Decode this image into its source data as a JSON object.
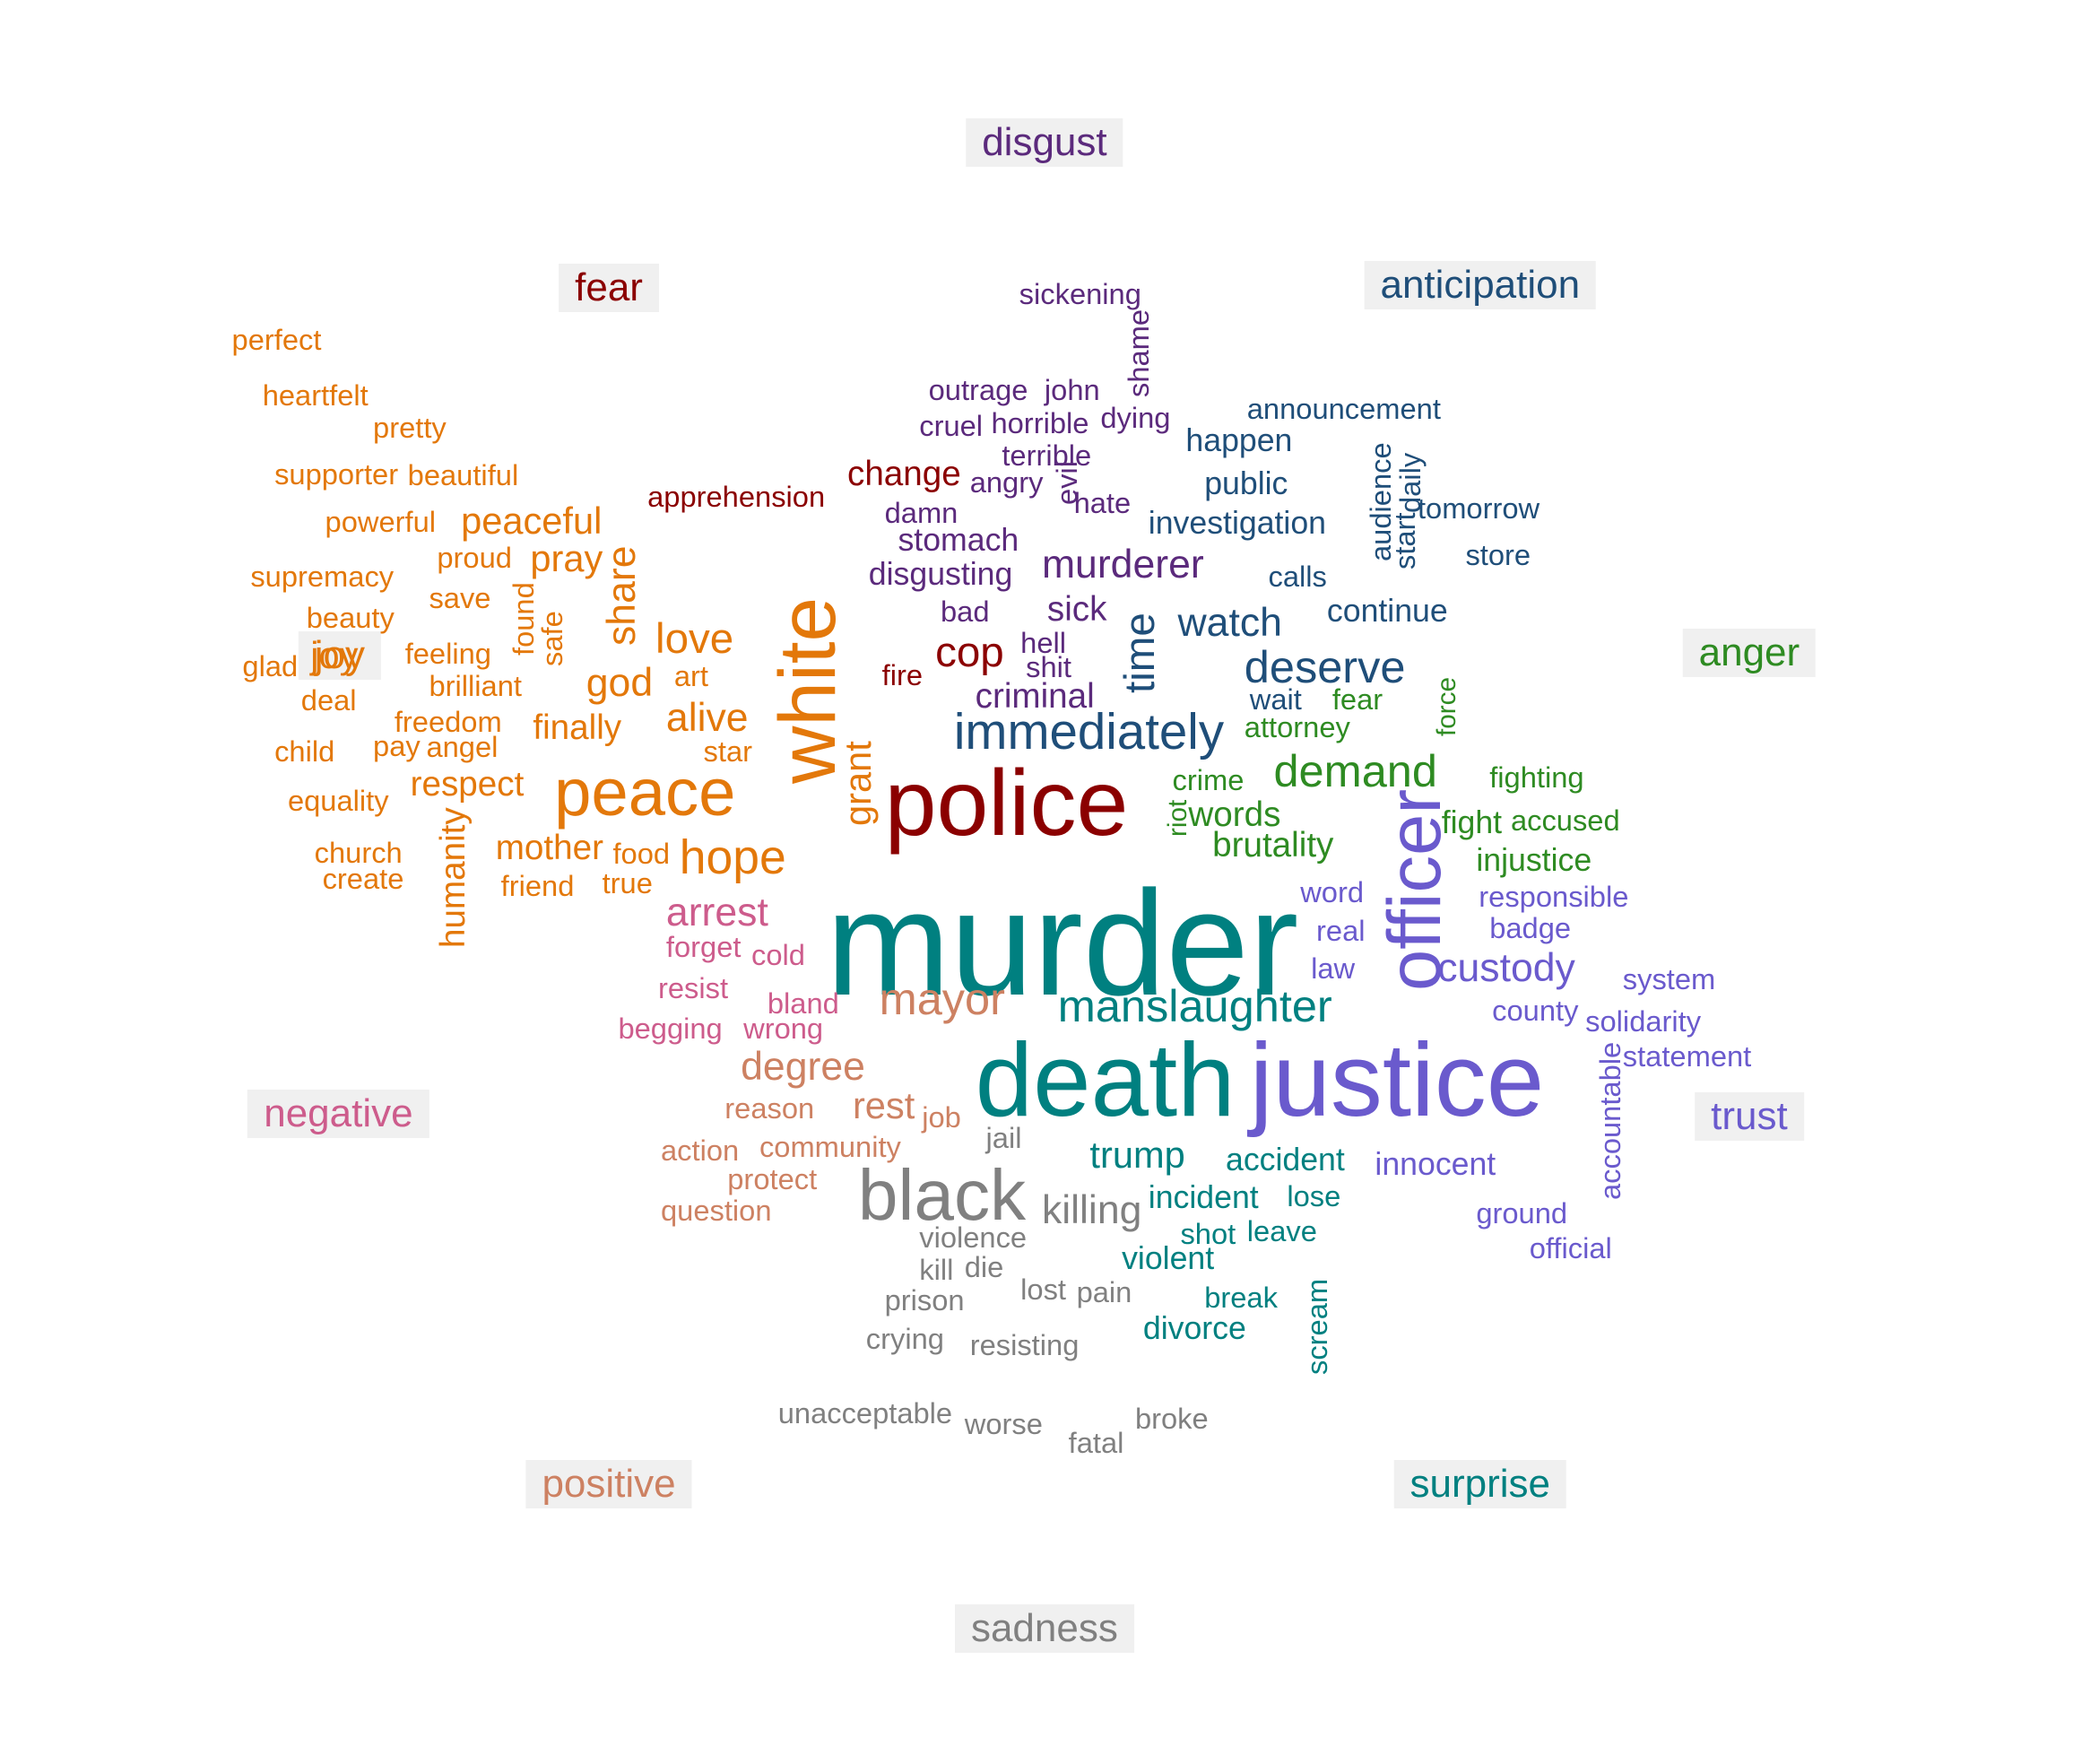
{
  "colors": {
    "fear": "#8b0000",
    "disgust": "#5b2a7c",
    "anticipation": "#1f4e79",
    "anger": "#2e8b22",
    "trust": "#6a5acd",
    "surprise": "#008080",
    "sadness": "#808080",
    "positive": "#cd8162",
    "negative": "#cd5c8c",
    "joy": "#e3780a"
  },
  "categories": [
    {
      "key": "disgust",
      "label": "disgust"
    },
    {
      "key": "fear",
      "label": "fear"
    },
    {
      "key": "anticipation",
      "label": "anticipation"
    },
    {
      "key": "anger",
      "label": "anger"
    },
    {
      "key": "trust",
      "label": "trust"
    },
    {
      "key": "surprise",
      "label": "surprise"
    },
    {
      "key": "sadness",
      "label": "sadness"
    },
    {
      "key": "positive",
      "label": "positive"
    },
    {
      "key": "negative",
      "label": "negative"
    },
    {
      "key": "joy",
      "label": "joy"
    }
  ],
  "words": [
    {
      "text": "murder",
      "category": "surprise"
    },
    {
      "text": "police",
      "category": "fear"
    },
    {
      "text": "death",
      "category": "surprise"
    },
    {
      "text": "justice",
      "category": "trust"
    },
    {
      "text": "white",
      "category": "joy"
    },
    {
      "text": "officer",
      "category": "trust"
    },
    {
      "text": "peace",
      "category": "joy"
    },
    {
      "text": "black",
      "category": "sadness"
    },
    {
      "text": "immediately",
      "category": "anticipation"
    },
    {
      "text": "manslaughter",
      "category": "surprise"
    },
    {
      "text": "mayor",
      "category": "positive"
    },
    {
      "text": "hope",
      "category": "joy"
    },
    {
      "text": "demand",
      "category": "anger"
    },
    {
      "text": "deserve",
      "category": "anticipation"
    },
    {
      "text": "murderer",
      "category": "disgust"
    },
    {
      "text": "custody",
      "category": "trust"
    },
    {
      "text": "killing",
      "category": "sadness"
    },
    {
      "text": "trump",
      "category": "surprise"
    },
    {
      "text": "degree",
      "category": "positive"
    },
    {
      "text": "arrest",
      "category": "negative"
    },
    {
      "text": "watch",
      "category": "anticipation"
    },
    {
      "text": "time",
      "category": "anticipation"
    },
    {
      "text": "cop",
      "category": "fear"
    },
    {
      "text": "love",
      "category": "joy"
    },
    {
      "text": "alive",
      "category": "joy"
    },
    {
      "text": "god",
      "category": "joy"
    },
    {
      "text": "share",
      "category": "joy"
    },
    {
      "text": "grant",
      "category": "joy"
    },
    {
      "text": "sick",
      "category": "disgust"
    },
    {
      "text": "criminal",
      "category": "disgust"
    },
    {
      "text": "brutality",
      "category": "anger"
    },
    {
      "text": "words",
      "category": "anger"
    },
    {
      "text": "rest",
      "category": "positive"
    },
    {
      "text": "peaceful",
      "category": "joy"
    },
    {
      "text": "pray",
      "category": "joy"
    },
    {
      "text": "joy",
      "category": "joy"
    },
    {
      "text": "finally",
      "category": "joy"
    },
    {
      "text": "respect",
      "category": "joy"
    },
    {
      "text": "mother",
      "category": "joy"
    },
    {
      "text": "humanity",
      "category": "joy"
    },
    {
      "text": "change",
      "category": "fear"
    },
    {
      "text": "stomach",
      "category": "disgust"
    },
    {
      "text": "disgusting",
      "category": "disgust"
    },
    {
      "text": "happen",
      "category": "anticipation"
    },
    {
      "text": "public",
      "category": "anticipation"
    },
    {
      "text": "investigation",
      "category": "anticipation"
    },
    {
      "text": "continue",
      "category": "anticipation"
    },
    {
      "text": "accident",
      "category": "surprise"
    },
    {
      "text": "innocent",
      "category": "trust"
    },
    {
      "text": "incident",
      "category": "surprise"
    },
    {
      "text": "violent",
      "category": "surprise"
    },
    {
      "text": "divorce",
      "category": "surprise"
    },
    {
      "text": "injustice",
      "category": "anger"
    },
    {
      "text": "fight",
      "category": "anger"
    },
    {
      "text": "accused",
      "category": "anger"
    },
    {
      "text": "solidarity",
      "category": "trust"
    },
    {
      "text": "statement",
      "category": "trust"
    },
    {
      "text": "accountable",
      "category": "trust"
    },
    {
      "text": "sickening",
      "category": "disgust"
    },
    {
      "text": "shame",
      "category": "disgust"
    },
    {
      "text": "outrage",
      "category": "disgust"
    },
    {
      "text": "john",
      "category": "disgust"
    },
    {
      "text": "cruel",
      "category": "disgust"
    },
    {
      "text": "horrible",
      "category": "disgust"
    },
    {
      "text": "dying",
      "category": "disgust"
    },
    {
      "text": "terrible",
      "category": "disgust"
    },
    {
      "text": "angry",
      "category": "disgust"
    },
    {
      "text": "evil",
      "category": "disgust"
    },
    {
      "text": "hate",
      "category": "disgust"
    },
    {
      "text": "damn",
      "category": "disgust"
    },
    {
      "text": "bad",
      "category": "disgust"
    },
    {
      "text": "hell",
      "category": "disgust"
    },
    {
      "text": "shit",
      "category": "disgust"
    },
    {
      "text": "apprehension",
      "category": "fear"
    },
    {
      "text": "fire",
      "category": "fear"
    },
    {
      "text": "announcement",
      "category": "anticipation"
    },
    {
      "text": "audience",
      "category": "anticipation"
    },
    {
      "text": "daily",
      "category": "anticipation"
    },
    {
      "text": "start",
      "category": "anticipation"
    },
    {
      "text": "tomorrow",
      "category": "anticipation"
    },
    {
      "text": "store",
      "category": "anticipation"
    },
    {
      "text": "calls",
      "category": "anticipation"
    },
    {
      "text": "wait",
      "category": "anticipation"
    },
    {
      "text": "fear",
      "category": "anger"
    },
    {
      "text": "attorney",
      "category": "anger"
    },
    {
      "text": "force",
      "category": "anger"
    },
    {
      "text": "crime",
      "category": "anger"
    },
    {
      "text": "riot",
      "category": "anger"
    },
    {
      "text": "fighting",
      "category": "anger"
    },
    {
      "text": "responsible",
      "category": "trust"
    },
    {
      "text": "word",
      "category": "trust"
    },
    {
      "text": "real",
      "category": "trust"
    },
    {
      "text": "law",
      "category": "trust"
    },
    {
      "text": "badge",
      "category": "trust"
    },
    {
      "text": "system",
      "category": "trust"
    },
    {
      "text": "county",
      "category": "trust"
    },
    {
      "text": "ground",
      "category": "trust"
    },
    {
      "text": "official",
      "category": "trust"
    },
    {
      "text": "lose",
      "category": "surprise"
    },
    {
      "text": "shot",
      "category": "surprise"
    },
    {
      "text": "leave",
      "category": "surprise"
    },
    {
      "text": "break",
      "category": "surprise"
    },
    {
      "text": "scream",
      "category": "surprise"
    },
    {
      "text": "jail",
      "category": "sadness"
    },
    {
      "text": "violence",
      "category": "sadness"
    },
    {
      "text": "kill",
      "category": "sadness"
    },
    {
      "text": "die",
      "category": "sadness"
    },
    {
      "text": "lost",
      "category": "sadness"
    },
    {
      "text": "pain",
      "category": "sadness"
    },
    {
      "text": "prison",
      "category": "sadness"
    },
    {
      "text": "crying",
      "category": "sadness"
    },
    {
      "text": "resisting",
      "category": "sadness"
    },
    {
      "text": "unacceptable",
      "category": "sadness"
    },
    {
      "text": "worse",
      "category": "sadness"
    },
    {
      "text": "fatal",
      "category": "sadness"
    },
    {
      "text": "broke",
      "category": "sadness"
    },
    {
      "text": "reason",
      "category": "positive"
    },
    {
      "text": "job",
      "category": "positive"
    },
    {
      "text": "action",
      "category": "positive"
    },
    {
      "text": "community",
      "category": "positive"
    },
    {
      "text": "protect",
      "category": "positive"
    },
    {
      "text": "question",
      "category": "positive"
    },
    {
      "text": "forget",
      "category": "negative"
    },
    {
      "text": "cold",
      "category": "negative"
    },
    {
      "text": "resist",
      "category": "negative"
    },
    {
      "text": "bland",
      "category": "negative"
    },
    {
      "text": "begging",
      "category": "negative"
    },
    {
      "text": "wrong",
      "category": "negative"
    },
    {
      "text": "perfect",
      "category": "joy"
    },
    {
      "text": "heartfelt",
      "category": "joy"
    },
    {
      "text": "pretty",
      "category": "joy"
    },
    {
      "text": "supporter",
      "category": "joy"
    },
    {
      "text": "beautiful",
      "category": "joy"
    },
    {
      "text": "powerful",
      "category": "joy"
    },
    {
      "text": "proud",
      "category": "joy"
    },
    {
      "text": "supremacy",
      "category": "joy"
    },
    {
      "text": "save",
      "category": "joy"
    },
    {
      "text": "found",
      "category": "joy"
    },
    {
      "text": "safe",
      "category": "joy"
    },
    {
      "text": "beauty",
      "category": "joy"
    },
    {
      "text": "glad",
      "category": "joy"
    },
    {
      "text": "feeling",
      "category": "joy"
    },
    {
      "text": "brilliant",
      "category": "joy"
    },
    {
      "text": "art",
      "category": "joy"
    },
    {
      "text": "deal",
      "category": "joy"
    },
    {
      "text": "freedom",
      "category": "joy"
    },
    {
      "text": "child",
      "category": "joy"
    },
    {
      "text": "pay",
      "category": "joy"
    },
    {
      "text": "angel",
      "category": "joy"
    },
    {
      "text": "star",
      "category": "joy"
    },
    {
      "text": "equality",
      "category": "joy"
    },
    {
      "text": "church",
      "category": "joy"
    },
    {
      "text": "create",
      "category": "joy"
    },
    {
      "text": "food",
      "category": "joy"
    },
    {
      "text": "friend",
      "category": "joy"
    },
    {
      "text": "true",
      "category": "joy"
    }
  ]
}
